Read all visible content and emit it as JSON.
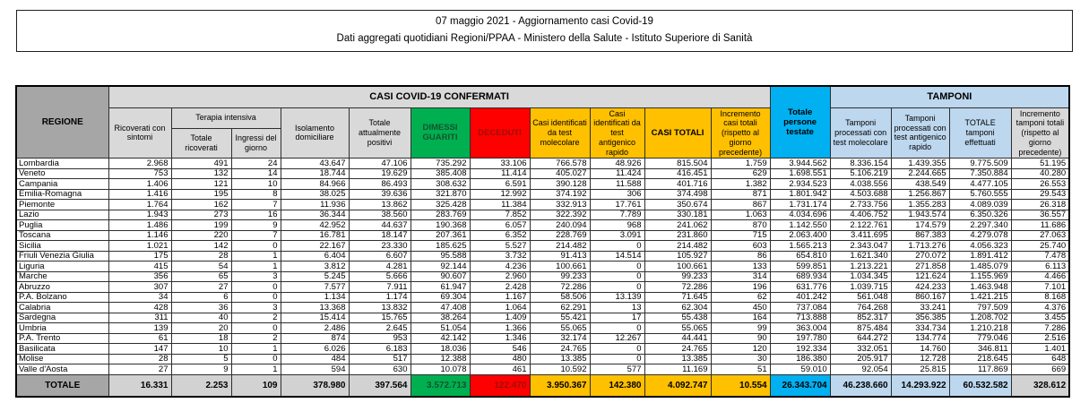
{
  "title_box": {
    "line1": "07 maggio 2021 - Aggiornamento casi Covid-19",
    "line2": "Dati aggregati quotidiani Regioni/PPAA - Ministero della Salute - Istituto Superiore di Sanità"
  },
  "colors": {
    "header_gray": "#a6a6a6",
    "subheader_gray": "#d9d9d9",
    "green": "#00b050",
    "red": "#ff0000",
    "yellow": "#ffc000",
    "cyan": "#00b0f0",
    "light_blue": "#bdd7ee"
  },
  "table": {
    "group_headers": {
      "regione": "REGIONE",
      "casi_confermati": "CASI COVID-19 CONFERMATI",
      "terapia_intensiva": "Terapia intensiva",
      "tamponi": "TAMPONI"
    },
    "columns": [
      "Ricoverati con sintomi",
      "Totale ricoverati",
      "Ingressi del giorno",
      "Isolamento domiciliare",
      "Totale attualmente positivi",
      "DIMESSI GUARITI",
      "DECEDUTI",
      "Casi identificati da test molecolare",
      "Casi identificati da test antigenico rapido",
      "CASI TOTALI",
      "Incremento casi totali (rispetto al giorno precedente)",
      "Totale persone testate",
      "Tamponi processati con test molecolare",
      "Tamponi processati con test antigenico rapido",
      "TOTALE tamponi effettuati",
      "Incremento tamponi totali (rispetto al giorno precedente)"
    ],
    "rows": [
      {
        "region": "Lombardia",
        "values": [
          "2.968",
          "491",
          "24",
          "43.647",
          "47.106",
          "735.292",
          "33.106",
          "766.578",
          "48.926",
          "815.504",
          "1.759",
          "3.944.562",
          "8.336.154",
          "1.439.355",
          "9.775.509",
          "51.195"
        ]
      },
      {
        "region": "Veneto",
        "values": [
          "753",
          "132",
          "14",
          "18.744",
          "19.629",
          "385.408",
          "11.414",
          "405.027",
          "11.424",
          "416.451",
          "629",
          "1.698.551",
          "5.106.219",
          "2.244.665",
          "7.350.884",
          "40.280"
        ]
      },
      {
        "region": "Campania",
        "values": [
          "1.406",
          "121",
          "10",
          "84.966",
          "86.493",
          "308.632",
          "6.591",
          "390.128",
          "11.588",
          "401.716",
          "1.382",
          "2.934.523",
          "4.038.556",
          "438.549",
          "4.477.105",
          "26.553"
        ]
      },
      {
        "region": "Emilia-Romagna",
        "values": [
          "1.416",
          "195",
          "8",
          "38.025",
          "39.636",
          "321.870",
          "12.992",
          "374.192",
          "306",
          "374.498",
          "871",
          "1.801.942",
          "4.503.688",
          "1.256.867",
          "5.760.555",
          "29.543"
        ]
      },
      {
        "region": "Piemonte",
        "values": [
          "1.764",
          "162",
          "7",
          "11.936",
          "13.862",
          "325.428",
          "11.384",
          "332.913",
          "17.761",
          "350.674",
          "867",
          "1.731.174",
          "2.733.756",
          "1.355.283",
          "4.089.039",
          "26.318"
        ]
      },
      {
        "region": "Lazio",
        "values": [
          "1.943",
          "273",
          "16",
          "36.344",
          "38.560",
          "283.769",
          "7.852",
          "322.392",
          "7.789",
          "330.181",
          "1.063",
          "4.034.696",
          "4.406.752",
          "1.943.574",
          "6.350.326",
          "36.557"
        ]
      },
      {
        "region": "Puglia",
        "values": [
          "1.486",
          "199",
          "9",
          "42.952",
          "44.637",
          "190.368",
          "6.057",
          "240.094",
          "968",
          "241.062",
          "870",
          "1.142.550",
          "2.122.761",
          "174.579",
          "2.297.340",
          "11.686"
        ]
      },
      {
        "region": "Toscana",
        "values": [
          "1.146",
          "220",
          "7",
          "16.781",
          "18.147",
          "207.361",
          "6.352",
          "228.769",
          "3.091",
          "231.860",
          "715",
          "2.063.400",
          "3.411.695",
          "867.383",
          "4.279.078",
          "27.063"
        ]
      },
      {
        "region": "Sicilia",
        "values": [
          "1.021",
          "142",
          "0",
          "22.167",
          "23.330",
          "185.625",
          "5.527",
          "214.482",
          "0",
          "214.482",
          "603",
          "1.565.213",
          "2.343.047",
          "1.713.276",
          "4.056.323",
          "25.740"
        ]
      },
      {
        "region": "Friuli Venezia Giulia",
        "values": [
          "175",
          "28",
          "1",
          "6.404",
          "6.607",
          "95.588",
          "3.732",
          "91.413",
          "14.514",
          "105.927",
          "86",
          "654.810",
          "1.621.340",
          "270.072",
          "1.891.412",
          "7.478"
        ]
      },
      {
        "region": "Liguria",
        "values": [
          "415",
          "54",
          "1",
          "3.812",
          "4.281",
          "92.144",
          "4.236",
          "100.661",
          "0",
          "100.661",
          "133",
          "599.851",
          "1.213.221",
          "271.858",
          "1.485.079",
          "6.113"
        ]
      },
      {
        "region": "Marche",
        "values": [
          "356",
          "65",
          "3",
          "5.245",
          "5.666",
          "90.607",
          "2.960",
          "99.233",
          "0",
          "99.233",
          "314",
          "689.934",
          "1.034.345",
          "121.624",
          "1.155.969",
          "4.466"
        ]
      },
      {
        "region": "Abruzzo",
        "values": [
          "307",
          "27",
          "0",
          "7.577",
          "7.911",
          "61.947",
          "2.428",
          "72.286",
          "0",
          "72.286",
          "196",
          "631.776",
          "1.039.715",
          "424.233",
          "1.463.948",
          "7.101"
        ]
      },
      {
        "region": "P.A. Bolzano",
        "values": [
          "34",
          "6",
          "0",
          "1.134",
          "1.174",
          "69.304",
          "1.167",
          "58.506",
          "13.139",
          "71.645",
          "62",
          "401.242",
          "561.048",
          "860.167",
          "1.421.215",
          "8.168"
        ]
      },
      {
        "region": "Calabria",
        "values": [
          "428",
          "36",
          "3",
          "13.368",
          "13.832",
          "47.408",
          "1.064",
          "62.291",
          "13",
          "62.304",
          "450",
          "737.084",
          "764.268",
          "33.241",
          "797.509",
          "4.376"
        ]
      },
      {
        "region": "Sardegna",
        "values": [
          "311",
          "40",
          "2",
          "15.414",
          "15.765",
          "38.264",
          "1.409",
          "55.421",
          "17",
          "55.438",
          "164",
          "713.888",
          "852.317",
          "356.385",
          "1.208.702",
          "3.455"
        ]
      },
      {
        "region": "Umbria",
        "values": [
          "139",
          "20",
          "0",
          "2.486",
          "2.645",
          "51.054",
          "1.366",
          "55.065",
          "0",
          "55.065",
          "99",
          "363.004",
          "875.484",
          "334.734",
          "1.210.218",
          "7.286"
        ]
      },
      {
        "region": "P.A. Trento",
        "values": [
          "61",
          "18",
          "2",
          "874",
          "953",
          "42.142",
          "1.346",
          "32.174",
          "12.267",
          "44.441",
          "90",
          "197.780",
          "644.272",
          "134.774",
          "779.046",
          "2.516"
        ]
      },
      {
        "region": "Basilicata",
        "values": [
          "147",
          "10",
          "1",
          "6.026",
          "6.183",
          "18.036",
          "546",
          "24.765",
          "0",
          "24.765",
          "120",
          "192.334",
          "332.051",
          "14.760",
          "346.811",
          "1.401"
        ]
      },
      {
        "region": "Molise",
        "values": [
          "28",
          "5",
          "0",
          "484",
          "517",
          "12.388",
          "480",
          "13.385",
          "0",
          "13.385",
          "30",
          "186.380",
          "205.917",
          "12.728",
          "218.645",
          "648"
        ]
      },
      {
        "region": "Valle d'Aosta",
        "values": [
          "27",
          "9",
          "1",
          "594",
          "630",
          "10.078",
          "461",
          "10.592",
          "577",
          "11.169",
          "51",
          "59.010",
          "92.054",
          "25.815",
          "117.869",
          "669"
        ]
      }
    ],
    "total_row": {
      "region": "TOTALE",
      "values": [
        "16.331",
        "2.253",
        "109",
        "378.980",
        "397.564",
        "3.572.713",
        "122.470",
        "3.950.367",
        "142.380",
        "4.092.747",
        "10.554",
        "26.343.704",
        "46.238.660",
        "14.293.922",
        "60.532.582",
        "328.612"
      ]
    }
  }
}
